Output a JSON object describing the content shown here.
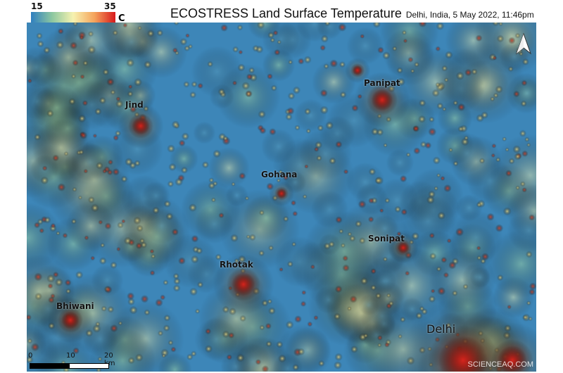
{
  "legend": {
    "min": "15",
    "max": "35",
    "unit": "C",
    "colors": [
      "#2f7fc0",
      "#8cc7a0",
      "#f6f2b0",
      "#f5a45c",
      "#d7191c"
    ]
  },
  "title": "ECOSTRESS Land Surface Temperature",
  "subtitle": "Delhi, India, 5 May 2022, 11:46pm",
  "cities": [
    {
      "name": "Panipat"
    },
    {
      "name": "Jind"
    },
    {
      "name": "Gohana"
    },
    {
      "name": "Sonipat"
    },
    {
      "name": "Rhotak"
    },
    {
      "name": "Bhiwani"
    },
    {
      "name": "Delhi"
    }
  ],
  "scale": {
    "ticks": [
      "0",
      "10",
      "20 km"
    ]
  },
  "north_icon": "north-arrow-icon",
  "watermark": "SCIENCEAQ.COM"
}
